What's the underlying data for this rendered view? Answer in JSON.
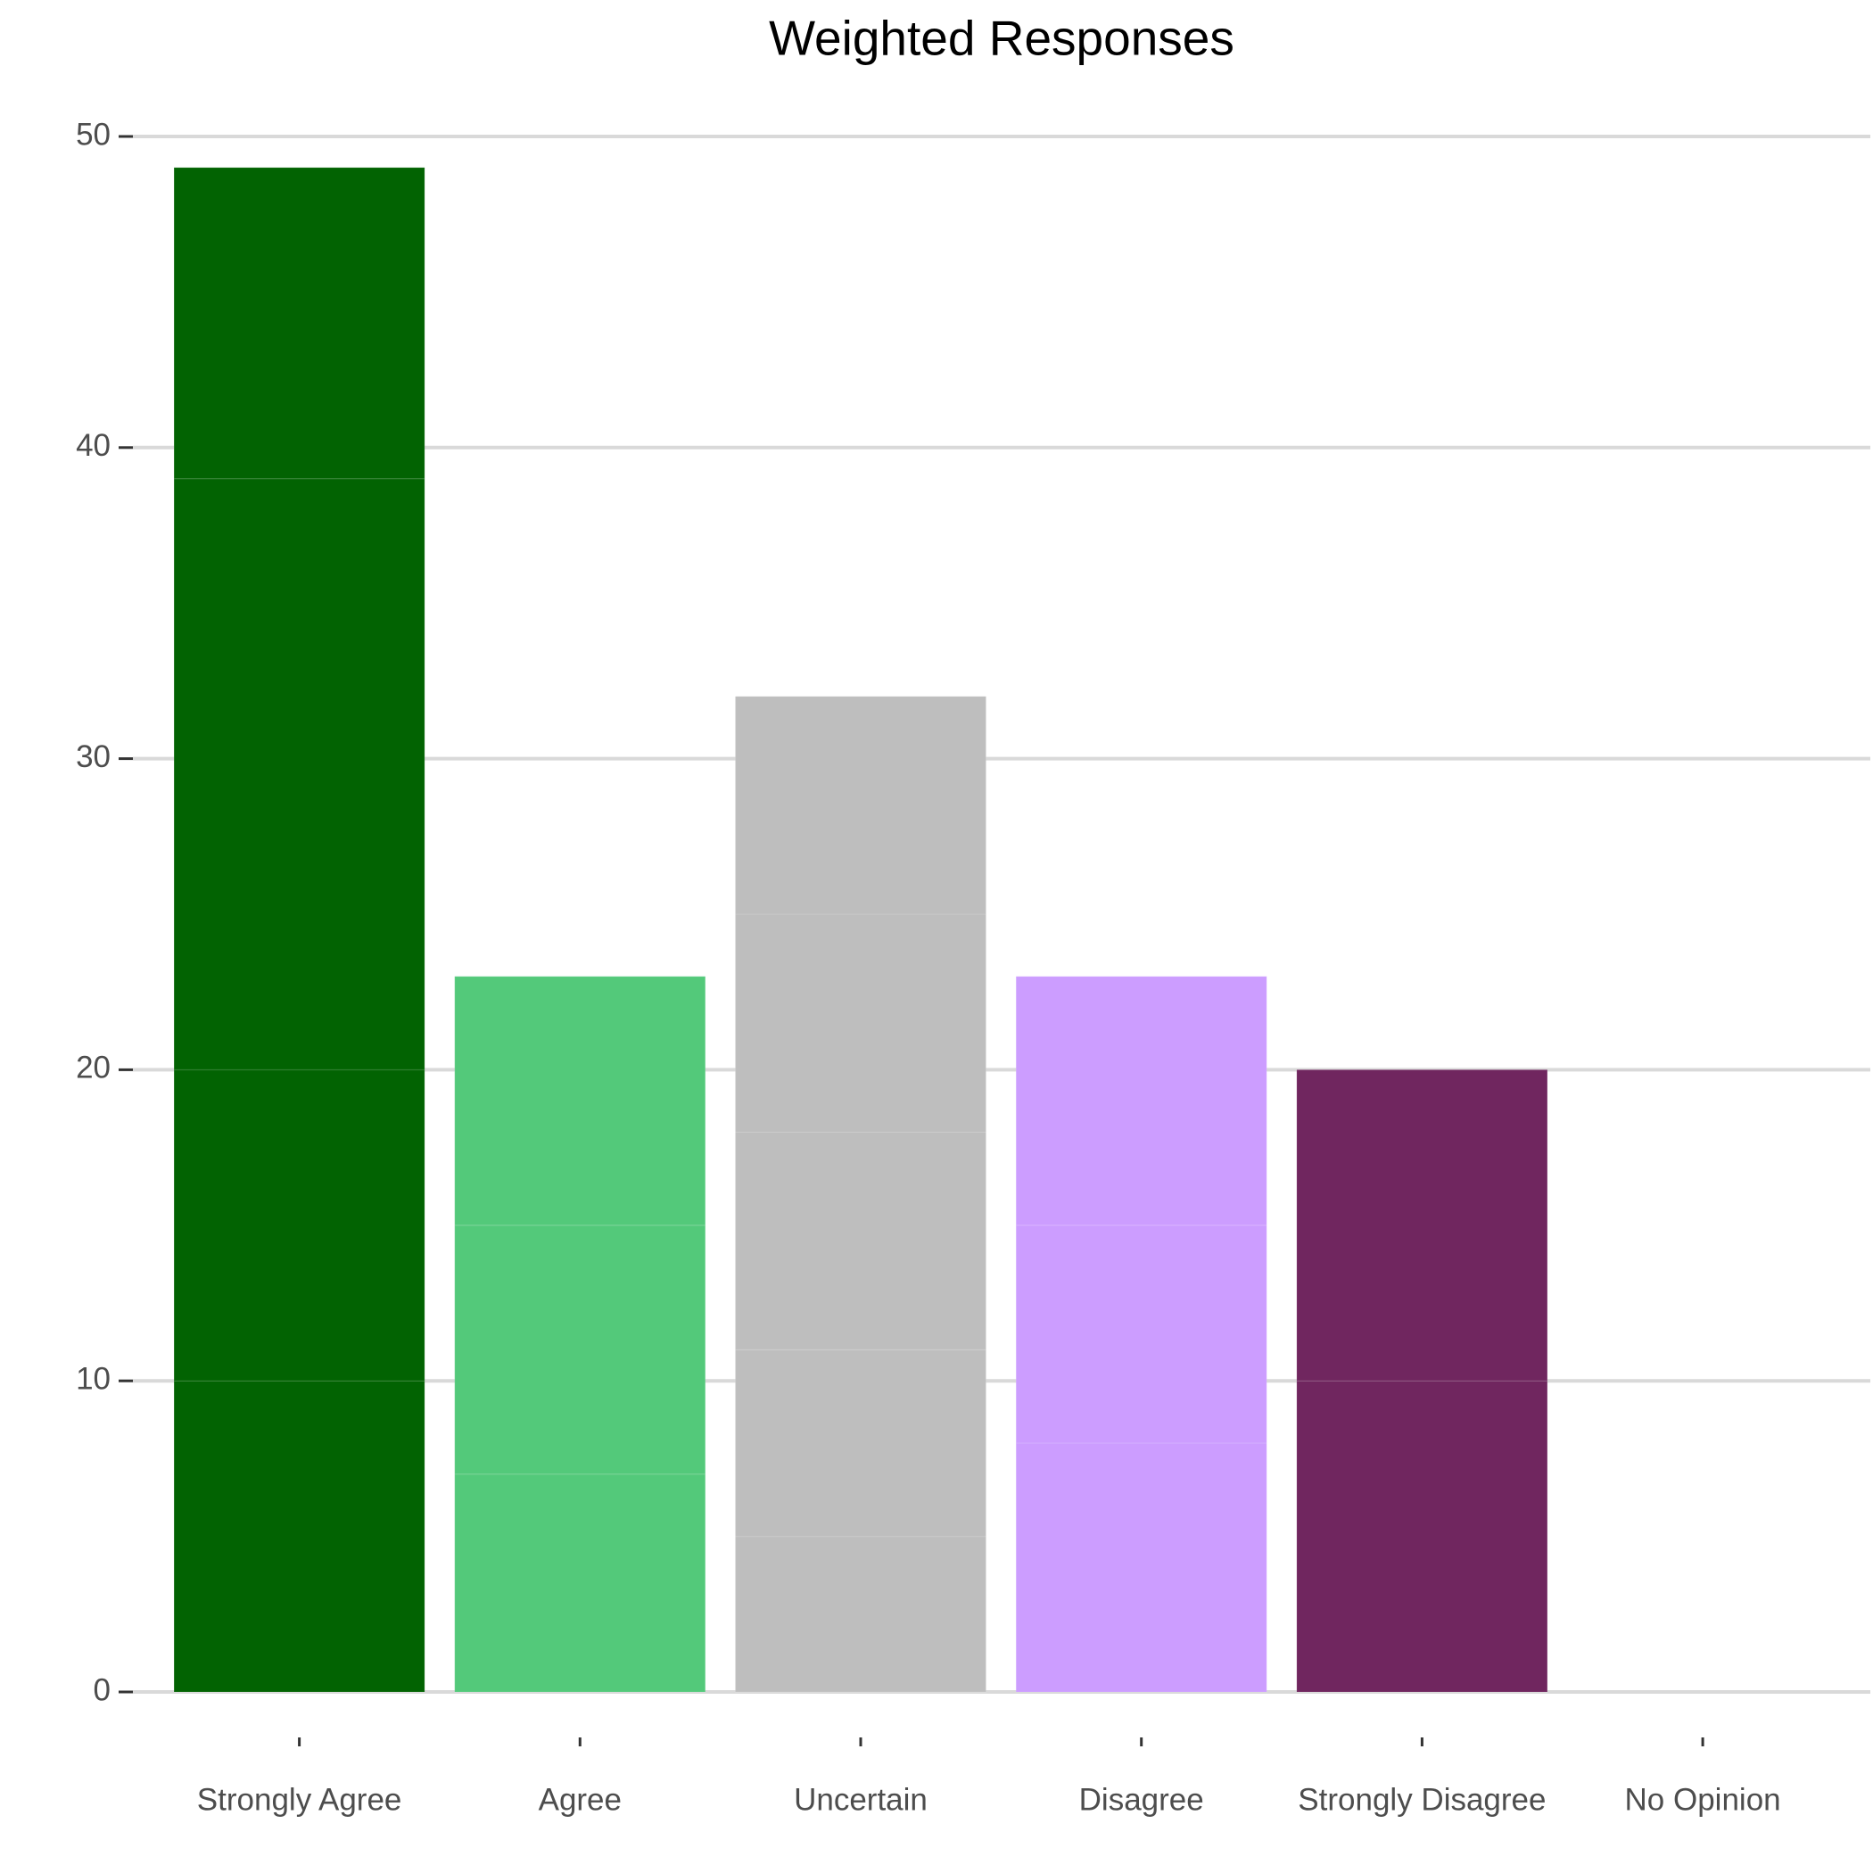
{
  "chart_data": {
    "type": "stacked_bar",
    "title": "Weighted Responses",
    "categories": [
      "Strongly Agree",
      "Agree",
      "Uncertain",
      "Disagree",
      "Strongly Disagree",
      "No Opinion"
    ],
    "segments": [
      [
        10,
        10,
        19,
        10
      ],
      [
        7,
        8,
        8
      ],
      [
        5,
        6,
        7,
        7,
        7
      ],
      [
        8,
        7,
        8
      ],
      [
        10,
        10
      ],
      []
    ],
    "colors": [
      "#026302",
      "#53c97a",
      "#bebebe",
      "#cc9dff",
      "#70265f",
      "#999999"
    ],
    "ylim": [
      0,
      50
    ],
    "yticks": [
      0,
      10,
      20,
      30,
      40,
      50
    ],
    "grid": true
  }
}
